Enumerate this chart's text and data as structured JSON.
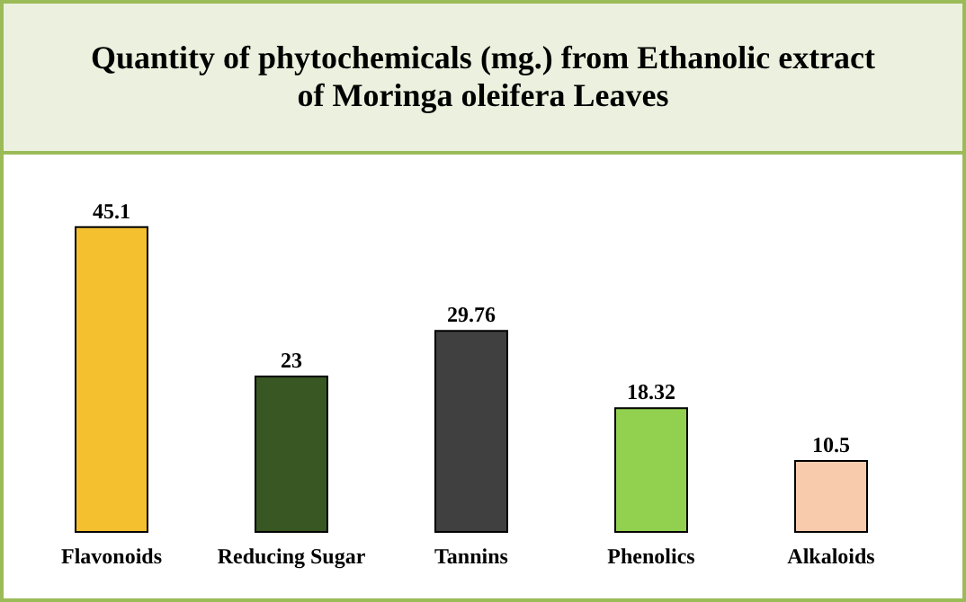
{
  "chart_data": {
    "type": "bar",
    "title": "Quantity of phytochemicals (mg.) from Ethanolic extract of Moringa oleifera Leaves",
    "categories": [
      "Flavonoids",
      "Reducing Sugar",
      "Tannins",
      "Phenolics",
      "Alkaloids"
    ],
    "values": [
      45.1,
      23,
      29.76,
      18.32,
      10.5
    ],
    "colors": [
      "#f5c030",
      "#385723",
      "#404040",
      "#92d050",
      "#f8cbad"
    ],
    "data_labels": true
  }
}
